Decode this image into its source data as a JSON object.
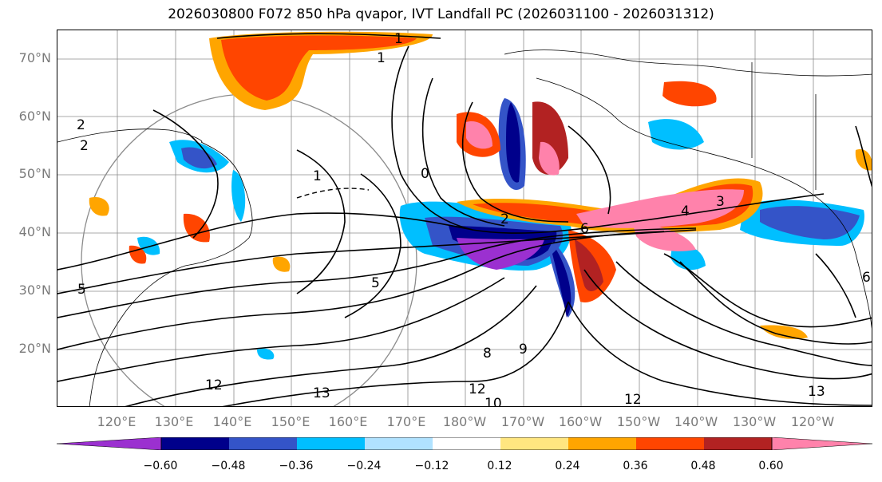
{
  "title": "2026030800 F072 850 hPa qvapor, IVT Landfall PC (2026031100 - 2026031312)",
  "lat_labels": [
    "70°N",
    "60°N",
    "50°N",
    "40°N",
    "30°N",
    "20°N"
  ],
  "lon_labels": [
    "120°E",
    "130°E",
    "140°E",
    "150°E",
    "160°E",
    "170°E",
    "180°W",
    "170°W",
    "160°W",
    "150°W",
    "140°W",
    "130°W",
    "120°W"
  ],
  "contour_labels": [
    "1",
    "2",
    "2",
    "1",
    "0",
    "1",
    "2",
    "3",
    "4",
    "5",
    "6",
    "8",
    "9",
    "10",
    "12",
    "12",
    "13",
    "12",
    "13",
    "5",
    "6"
  ],
  "colorbar": {
    "ticks": [
      "−0.60",
      "−0.48",
      "−0.36",
      "−0.24",
      "−0.12",
      "0.12",
      "0.24",
      "0.36",
      "0.48",
      "0.60"
    ],
    "colors": [
      "#9b30d0",
      "#00008b",
      "#3454c8",
      "#00bfff",
      "#b0e2ff",
      "#ffffff",
      "#ffe680",
      "#ffa500",
      "#ff4500",
      "#b22222",
      "#ff82ab"
    ]
  }
}
